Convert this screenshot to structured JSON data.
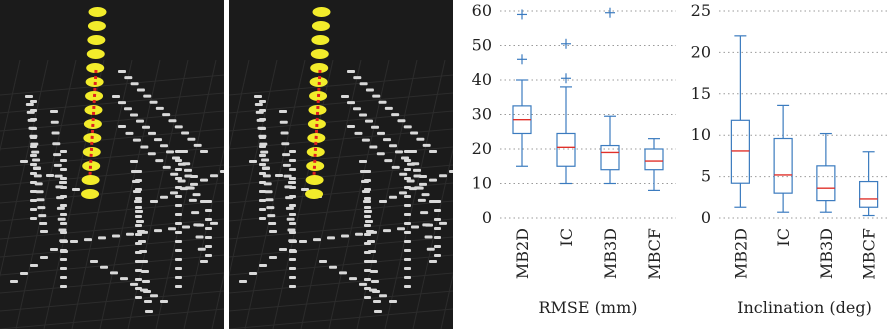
{
  "chart_data": [
    {
      "type": "box",
      "xlabel": "RMSE (mm)",
      "ylabel": "",
      "ylim": [
        0,
        60
      ],
      "yticks": [
        0,
        10,
        20,
        30,
        40,
        50,
        60
      ],
      "grid": "horizontal dotted",
      "categories": [
        "MB2D",
        "IC",
        "MB3D",
        "MBCF"
      ],
      "boxes": [
        {
          "label": "MB2D",
          "min": 15,
          "q1": 24.5,
          "median": 28.5,
          "q3": 32.5,
          "max": 40,
          "outliers": [
            46,
            59
          ]
        },
        {
          "label": "IC",
          "min": 10,
          "q1": 15,
          "median": 20.5,
          "q3": 24.5,
          "max": 38,
          "outliers": [
            40.5,
            50.5
          ]
        },
        {
          "label": "MB3D",
          "min": 10,
          "q1": 14,
          "median": 19,
          "q3": 21,
          "max": 29.5,
          "outliers": [
            59.5
          ]
        },
        {
          "label": "MBCF",
          "min": 8,
          "q1": 14,
          "median": 16.5,
          "q3": 20,
          "max": 23,
          "outliers": []
        }
      ]
    },
    {
      "type": "box",
      "xlabel": "Inclination (deg)",
      "ylabel": "",
      "ylim": [
        0,
        25
      ],
      "yticks": [
        0,
        5,
        10,
        15,
        20,
        25
      ],
      "grid": "horizontal dotted",
      "categories": [
        "MB2D",
        "IC",
        "MB3D",
        "MBCF"
      ],
      "boxes": [
        {
          "label": "MB2D",
          "min": 1.3,
          "q1": 4.2,
          "median": 8.1,
          "q3": 11.8,
          "max": 22,
          "outliers": []
        },
        {
          "label": "IC",
          "min": 0.7,
          "q1": 3,
          "median": 5.2,
          "q3": 9.6,
          "max": 13.6,
          "outliers": []
        },
        {
          "label": "MB3D",
          "min": 0.7,
          "q1": 2.1,
          "median": 3.6,
          "q3": 6.3,
          "max": 10.2,
          "outliers": []
        },
        {
          "label": "MBCF",
          "min": 0.3,
          "q1": 1.3,
          "median": 2.3,
          "q3": 4.4,
          "max": 8,
          "outliers": []
        }
      ]
    }
  ],
  "colors": {
    "box": "#3b7bbf",
    "median": "#e0302a",
    "grid": "#9a9a9a",
    "panel_background": "#1b1b1b",
    "points_gray": "#d9d9d9",
    "points_yellow": "#f2ec2b",
    "fit_red": "#e02020"
  }
}
